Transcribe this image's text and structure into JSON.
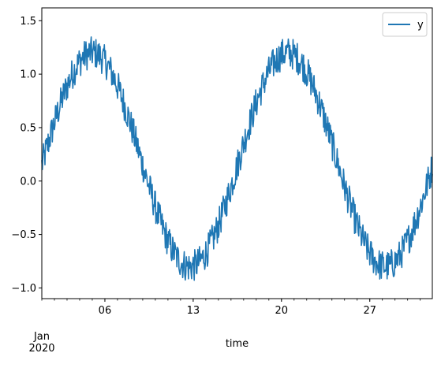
{
  "chart_data": {
    "type": "line",
    "title": "",
    "xlabel": "time",
    "ylabel": "",
    "x_start": "2020-01-01",
    "x_end": "2020-01-31T23:00",
    "xlim": [
      "2020-01-01",
      "2020-01-31T23:00"
    ],
    "ylim": [
      -1.1,
      1.62
    ],
    "x_major_ticks": [
      {
        "date": "2020-01-06",
        "label": "06"
      },
      {
        "date": "2020-01-13",
        "label": "13"
      },
      {
        "date": "2020-01-20",
        "label": "20"
      },
      {
        "date": "2020-01-27",
        "label": "27"
      }
    ],
    "x_secondary_label": [
      "Jan",
      "2020"
    ],
    "y_ticks": [
      -1.0,
      -0.5,
      0.0,
      0.5,
      1.0,
      1.5
    ],
    "y_tick_labels": [
      "−1.0",
      "−0.5",
      "0.0",
      "0.5",
      "1.0",
      "1.5"
    ],
    "grid": false,
    "legend_position": "top-right",
    "series": [
      {
        "name": "y",
        "color": "#1f77b4",
        "sampling": "hourly",
        "description": "noisy sinusoid",
        "baseline_offset": 0.2,
        "amplitude": 1.0,
        "period_days": 15.5,
        "peak_dates": [
          "2020-01-05",
          "2020-01-20"
        ],
        "trough_dates": [
          "2020-01-12T12:00",
          "2020-01-28"
        ],
        "noise_amplitude": 0.3
      }
    ]
  }
}
